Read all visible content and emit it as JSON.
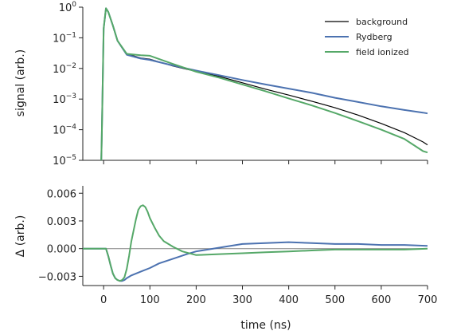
{
  "chart_data": [
    {
      "type": "line",
      "panel": "top",
      "ylabel": "signal (arb.)",
      "yscale": "log",
      "ylim": [
        1e-05,
        1
      ],
      "xlim": [
        -45,
        700
      ],
      "x_ticks": [
        0,
        100,
        200,
        300,
        400,
        500,
        600,
        700
      ],
      "y_ticks": [
        {
          "value": 1,
          "base": "10",
          "exp": "0"
        },
        {
          "value": 0.1,
          "base": "10",
          "exp": "−1"
        },
        {
          "value": 0.01,
          "base": "10",
          "exp": "−2"
        },
        {
          "value": 0.001,
          "base": "10",
          "exp": "−3"
        },
        {
          "value": 0.0001,
          "base": "10",
          "exp": "−4"
        },
        {
          "value": 1e-05,
          "base": "10",
          "exp": "−5"
        }
      ],
      "legend_position": "top-right",
      "grid": false,
      "series": [
        {
          "name": "background",
          "color": "#000000",
          "x": [
            -5,
            -4,
            0,
            5,
            10,
            20,
            30,
            50,
            80,
            100,
            150,
            200,
            250,
            300,
            350,
            400,
            450,
            500,
            550,
            600,
            650,
            690,
            700
          ],
          "y": [
            1e-05,
            5e-05,
            0.2,
            0.92,
            0.7,
            0.25,
            0.08,
            0.03,
            0.022,
            0.02,
            0.012,
            0.008,
            0.0055,
            0.0034,
            0.0021,
            0.00135,
            0.00085,
            0.00052,
            0.0003,
            0.00016,
            8e-05,
            4e-05,
            3.2e-05
          ]
        },
        {
          "name": "Rydberg",
          "color": "#4c72b0",
          "x": [
            -5,
            -4,
            0,
            5,
            10,
            20,
            30,
            50,
            80,
            100,
            150,
            200,
            250,
            300,
            350,
            400,
            450,
            500,
            550,
            600,
            650,
            690,
            700
          ],
          "y": [
            1e-05,
            5e-05,
            0.2,
            0.92,
            0.7,
            0.25,
            0.08,
            0.028,
            0.021,
            0.019,
            0.0125,
            0.0085,
            0.006,
            0.0042,
            0.003,
            0.0022,
            0.0016,
            0.0011,
            0.0008,
            0.00058,
            0.00044,
            0.00036,
            0.00034
          ]
        },
        {
          "name": "field ionized",
          "color": "#55a868",
          "x": [
            -5,
            -4,
            0,
            5,
            10,
            20,
            30,
            50,
            80,
            100,
            150,
            200,
            250,
            300,
            350,
            400,
            450,
            500,
            550,
            600,
            650,
            690,
            700
          ],
          "y": [
            1e-05,
            5e-05,
            0.2,
            0.92,
            0.7,
            0.25,
            0.08,
            0.03,
            0.027,
            0.026,
            0.014,
            0.0078,
            0.005,
            0.003,
            0.0018,
            0.00105,
            0.00062,
            0.00035,
            0.00019,
            0.0001,
            5e-05,
            2e-05,
            1.8e-05
          ]
        }
      ]
    },
    {
      "type": "line",
      "panel": "bottom",
      "xlabel": "time (ns)",
      "ylabel": "Δ (arb.)",
      "ylim": [
        -0.004,
        0.0068
      ],
      "xlim": [
        -45,
        700
      ],
      "x_ticks": [
        0,
        100,
        200,
        300,
        400,
        500,
        600,
        700
      ],
      "y_ticks": [
        {
          "value": 0.006,
          "label": "0.006"
        },
        {
          "value": 0.003,
          "label": "0.003"
        },
        {
          "value": 0.0,
          "label": "0.000"
        },
        {
          "value": -0.003,
          "label": "−0.003"
        }
      ],
      "zero_line_color": "#808080",
      "series": [
        {
          "name": "Rydberg",
          "color": "#4c72b0",
          "x": [
            -45,
            5,
            10,
            15,
            20,
            25,
            30,
            35,
            40,
            45,
            50,
            60,
            80,
            100,
            120,
            150,
            180,
            200,
            250,
            300,
            350,
            400,
            450,
            500,
            550,
            600,
            650,
            700
          ],
          "y": [
            0,
            0,
            -0.0008,
            -0.0018,
            -0.0027,
            -0.0032,
            -0.0034,
            -0.0035,
            -0.0035,
            -0.0034,
            -0.0032,
            -0.0029,
            -0.0025,
            -0.0021,
            -0.0016,
            -0.0011,
            -0.0006,
            -0.0003,
            0.0001,
            0.0005,
            0.0006,
            0.0007,
            0.0006,
            0.0005,
            0.0005,
            0.0004,
            0.0004,
            0.0003
          ]
        },
        {
          "name": "field ionized",
          "color": "#55a868",
          "x": [
            -45,
            5,
            10,
            15,
            20,
            25,
            30,
            35,
            40,
            45,
            50,
            55,
            60,
            70,
            75,
            80,
            85,
            90,
            95,
            100,
            110,
            120,
            130,
            150,
            170,
            200,
            250,
            300,
            350,
            400,
            450,
            500,
            550,
            600,
            650,
            700
          ],
          "y": [
            0,
            0,
            -0.0008,
            -0.0018,
            -0.0027,
            -0.0032,
            -0.0034,
            -0.0035,
            -0.0034,
            -0.0031,
            -0.0022,
            -0.0008,
            0.0008,
            0.0032,
            0.0042,
            0.0046,
            0.0047,
            0.0045,
            0.004,
            0.0033,
            0.0023,
            0.0014,
            0.0008,
            0.0002,
            -0.0003,
            -0.0007,
            -0.0006,
            -0.0005,
            -0.0004,
            -0.0003,
            -0.0002,
            -0.0001,
            -0.0001,
            -0.0001,
            -0.0001,
            0.0
          ]
        }
      ]
    }
  ]
}
